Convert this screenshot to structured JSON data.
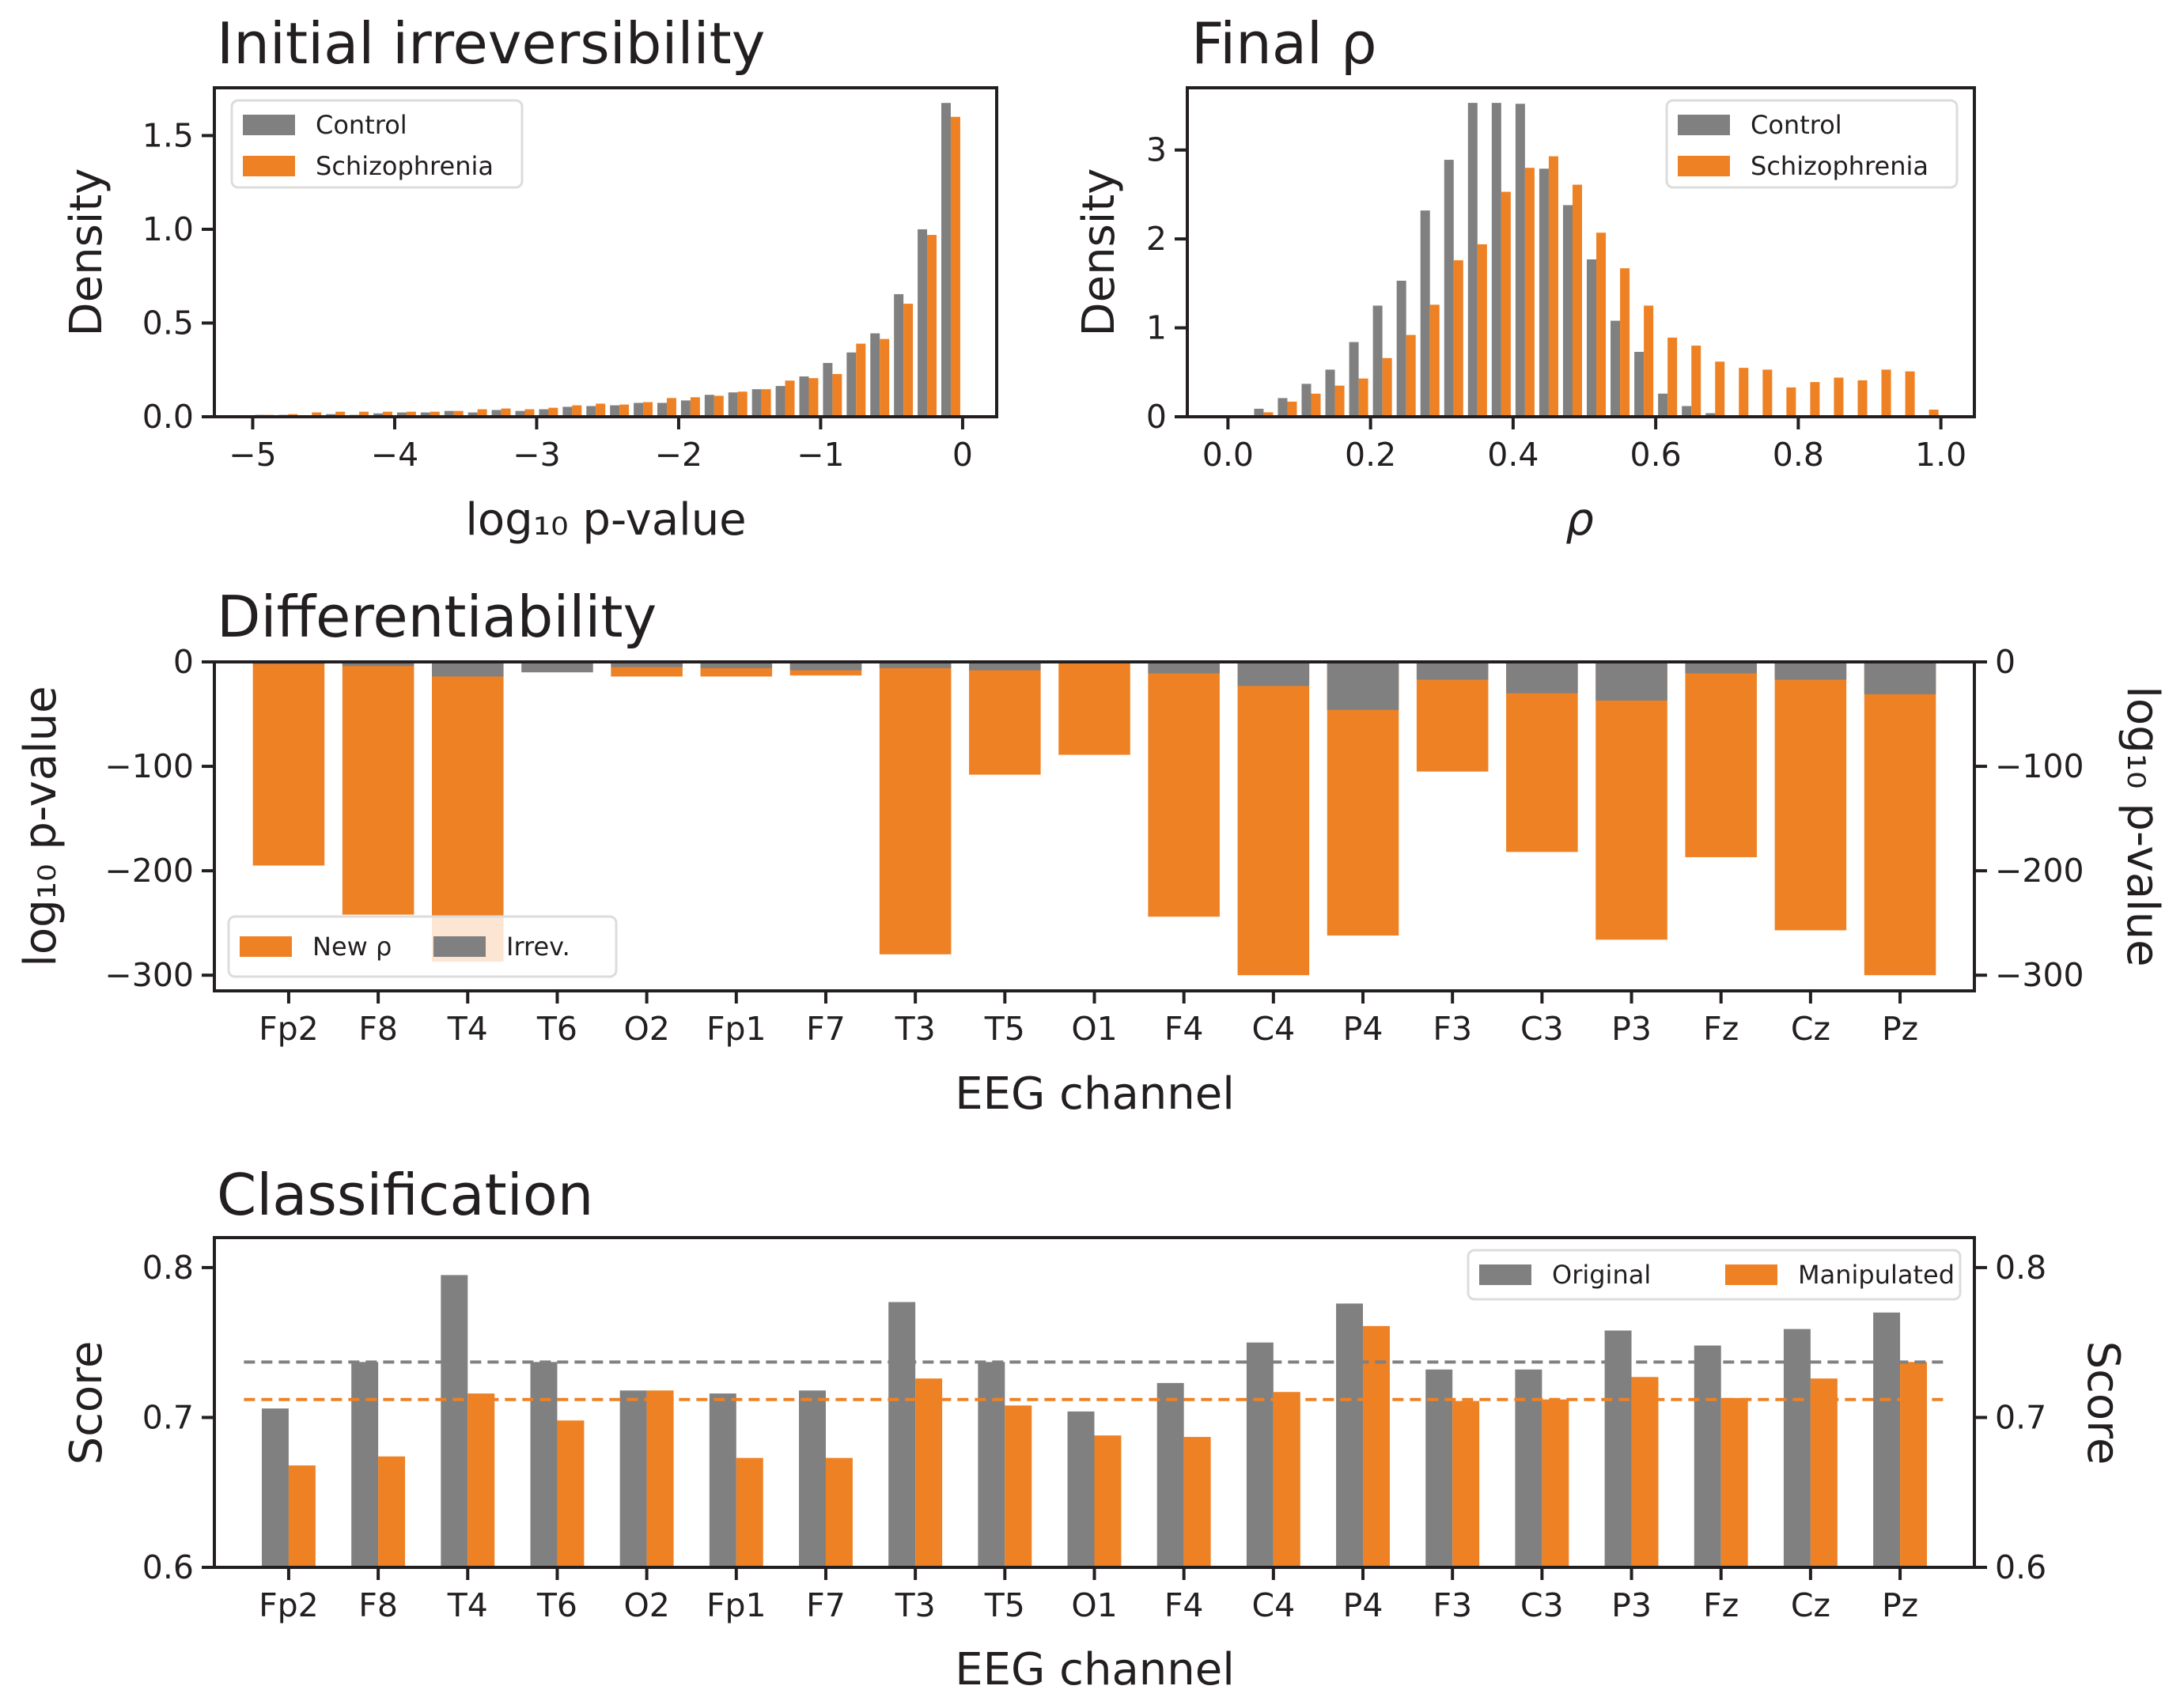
{
  "colors": {
    "control": "#808080",
    "schizophrenia": "#ee8124",
    "axis": "#231f20"
  },
  "chart_data": [
    {
      "type": "bar",
      "title": "Initial irreversibility",
      "xlabel": "log₁₀ p-value",
      "ylabel": "Density",
      "xlim": [
        -5.27,
        0.24
      ],
      "ylim": [
        0,
        1.755
      ],
      "xticks": [
        -5,
        -4,
        -3,
        -2,
        -1,
        0
      ],
      "xtick_labels": [
        "−5",
        "−4",
        "−3",
        "−2",
        "−1",
        "0"
      ],
      "yticks": [
        0,
        0.5,
        1.0,
        1.5
      ],
      "ytick_labels": [
        "0.0",
        "0.5",
        "1.0",
        "1.5"
      ],
      "bins": {
        "start": -5,
        "end": 0,
        "count": 30
      },
      "legend": "upper-left",
      "series": [
        {
          "name": "Control",
          "color": "#808080",
          "values": [
            0.01,
            0.01,
            0.004,
            0.014,
            0.01,
            0.018,
            0.023,
            0.023,
            0.031,
            0.023,
            0.036,
            0.031,
            0.04,
            0.053,
            0.057,
            0.061,
            0.074,
            0.074,
            0.087,
            0.117,
            0.13,
            0.147,
            0.164,
            0.215,
            0.287,
            0.343,
            0.445,
            0.654,
            1.0,
            1.674
          ]
        },
        {
          "name": "Schizophrenia",
          "color": "#ee8124",
          "values": [
            0.01,
            0.014,
            0.023,
            0.027,
            0.027,
            0.027,
            0.027,
            0.027,
            0.031,
            0.04,
            0.044,
            0.04,
            0.048,
            0.061,
            0.07,
            0.065,
            0.078,
            0.1,
            0.104,
            0.112,
            0.134,
            0.147,
            0.193,
            0.206,
            0.228,
            0.39,
            0.415,
            0.603,
            0.97,
            1.6
          ]
        }
      ]
    },
    {
      "type": "bar",
      "title": "Final ρ",
      "xlabel": "ρ",
      "ylabel": "Density",
      "xlim": [
        -0.057,
        1.047
      ],
      "ylim": [
        0,
        3.7
      ],
      "xticks": [
        0,
        0.2,
        0.4,
        0.6,
        0.8,
        1.0
      ],
      "xtick_labels": [
        "0.0",
        "0.2",
        "0.4",
        "0.6",
        "0.8",
        "1.0"
      ],
      "yticks": [
        0,
        1,
        2,
        3
      ],
      "ytick_labels": [
        "0",
        "1",
        "2",
        "3"
      ],
      "bins": {
        "start": 0,
        "end": 1,
        "count": 30
      },
      "legend": "upper-right",
      "series": [
        {
          "name": "Control",
          "color": "#808080",
          "values": [
            0,
            0.09,
            0.21,
            0.37,
            0.53,
            0.84,
            1.25,
            1.53,
            2.32,
            2.89,
            3.53,
            3.53,
            3.52,
            2.79,
            2.38,
            1.77,
            1.08,
            0.73,
            0.26,
            0.12,
            0.04,
            0.01,
            0,
            0,
            0,
            0,
            0,
            0,
            0,
            0
          ]
        },
        {
          "name": "Schizophrenia",
          "color": "#ee8124",
          "values": [
            0,
            0.05,
            0.17,
            0.26,
            0.35,
            0.43,
            0.66,
            0.92,
            1.26,
            1.76,
            1.94,
            2.53,
            2.8,
            2.93,
            2.61,
            2.07,
            1.67,
            1.25,
            0.89,
            0.8,
            0.62,
            0.55,
            0.53,
            0.33,
            0.39,
            0.44,
            0.41,
            0.53,
            0.51,
            0.08
          ]
        }
      ]
    },
    {
      "type": "bar",
      "title": "Differentiability",
      "xlabel": "EEG channel",
      "ylabel": "log₁₀ p-value",
      "ylabel_right": "log₁₀ p-value",
      "categories": [
        "Fp2",
        "F8",
        "T4",
        "T6",
        "O2",
        "Fp1",
        "F7",
        "T3",
        "T5",
        "O1",
        "F4",
        "C4",
        "P4",
        "F3",
        "C3",
        "P3",
        "Fz",
        "Cz",
        "Pz"
      ],
      "ylim": [
        -315,
        0
      ],
      "yticks": [
        0,
        -100,
        -200,
        -300
      ],
      "ytick_labels": [
        "0",
        "−100",
        "−200",
        "−300"
      ],
      "legend": "lower-left",
      "series": [
        {
          "name": "New ρ",
          "color": "#ee8124",
          "values": [
            -195,
            -242,
            -287,
            0,
            -14,
            -14,
            -13,
            -280,
            -108,
            -89,
            -244,
            -300,
            -262,
            -105,
            -182,
            -266,
            -187,
            -257,
            -300
          ]
        },
        {
          "name": "Irrev.",
          "color": "#808080",
          "values": [
            -2,
            -4,
            -14,
            -10,
            -5,
            -6,
            -8,
            -6,
            -8,
            -1,
            -11,
            -23,
            -46,
            -17,
            -30,
            -37,
            -11,
            -17,
            -31
          ]
        }
      ]
    },
    {
      "type": "bar",
      "title": "Classification",
      "xlabel": "EEG channel",
      "ylabel": "Score",
      "ylabel_right": "Score",
      "categories": [
        "Fp2",
        "F8",
        "T4",
        "T6",
        "O2",
        "Fp1",
        "F7",
        "T3",
        "T5",
        "O1",
        "F4",
        "C4",
        "P4",
        "F3",
        "C3",
        "P3",
        "Fz",
        "Cz",
        "Pz"
      ],
      "ylim": [
        0.6,
        0.82
      ],
      "yticks": [
        0.6,
        0.7,
        0.8
      ],
      "ytick_labels": [
        "0.6",
        "0.7",
        "0.8"
      ],
      "legend": "upper-right",
      "series": [
        {
          "name": "Original",
          "color": "#808080",
          "values": [
            0.706,
            0.737,
            0.795,
            0.737,
            0.718,
            0.716,
            0.718,
            0.777,
            0.737,
            0.704,
            0.723,
            0.75,
            0.776,
            0.732,
            0.732,
            0.758,
            0.748,
            0.759,
            0.77
          ],
          "mean_line": 0.737
        },
        {
          "name": "Manipulated",
          "color": "#ee8124",
          "values": [
            0.668,
            0.674,
            0.716,
            0.698,
            0.718,
            0.673,
            0.673,
            0.726,
            0.708,
            0.688,
            0.687,
            0.717,
            0.761,
            0.711,
            0.712,
            0.727,
            0.713,
            0.726,
            0.737
          ],
          "mean_line": 0.712
        }
      ]
    }
  ]
}
